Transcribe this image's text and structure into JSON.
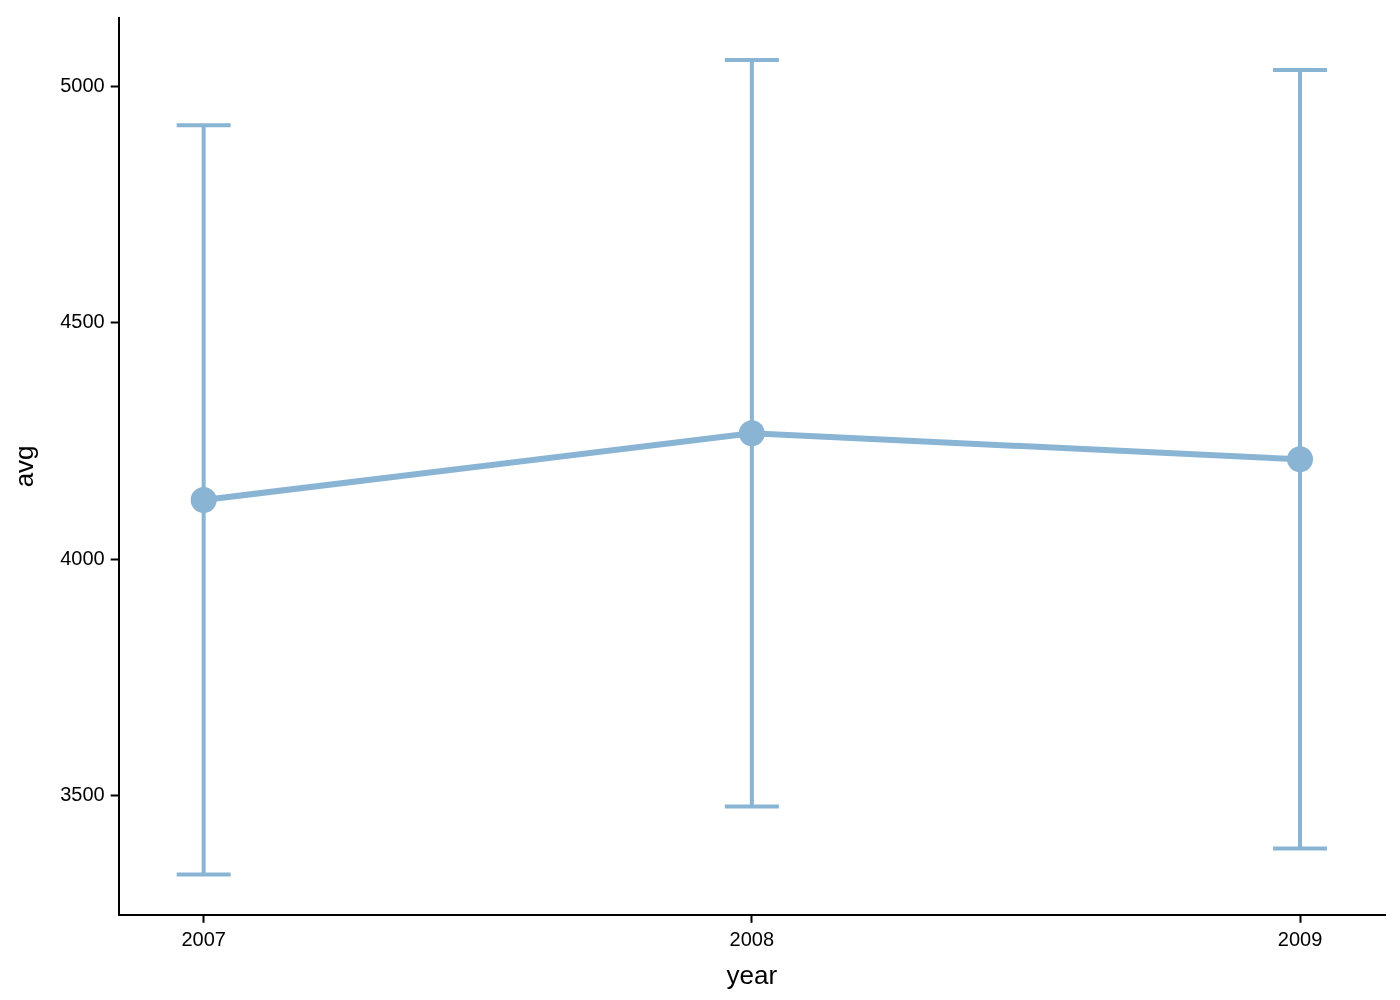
{
  "chart_data": {
    "type": "line",
    "xlabel": "year",
    "ylabel": "avg",
    "x": [
      2007,
      2008,
      2009
    ],
    "xlim": [
      2006.845,
      2009.155
    ],
    "xticks": [
      2007,
      2008,
      2009
    ],
    "ylim": [
      3248,
      5144
    ],
    "yticks": [
      3500,
      4000,
      4500,
      5000
    ],
    "values": [
      4125,
      4266,
      4211
    ],
    "errors": [
      792,
      789,
      823
    ],
    "color": "#8ab4d4",
    "marker": "circle",
    "line_style": "solid"
  }
}
